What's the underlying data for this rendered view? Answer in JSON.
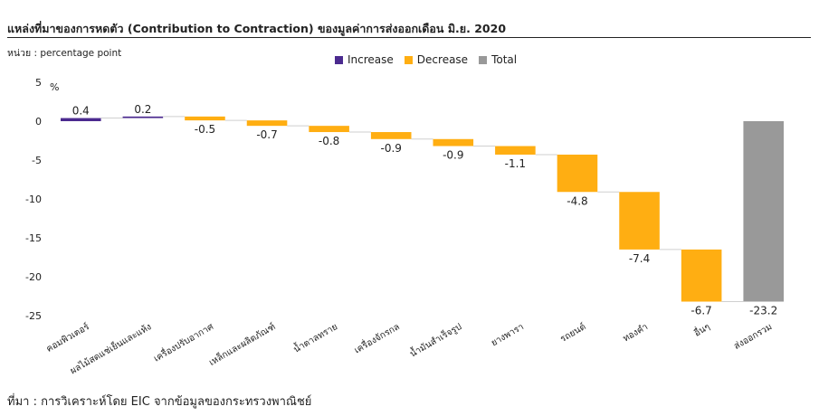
{
  "header": {
    "title": "แหล่งที่มาของการหดตัว (Contribution to Contraction) ของมูลค่าการส่งออกเดือน มิ.ย. 2020",
    "unit": "หน่วย : percentage point"
  },
  "legend": {
    "items": [
      {
        "label": "Increase",
        "color": "#4b2a8f"
      },
      {
        "label": "Decrease",
        "color": "#ffae12"
      },
      {
        "label": "Total",
        "color": "#999999"
      }
    ]
  },
  "chart_data": {
    "type": "waterfall",
    "ylabel": "%",
    "ylim": [
      -25,
      5
    ],
    "yticks": [
      5,
      0,
      -5,
      -10,
      -15,
      -20,
      -25
    ],
    "grid": false,
    "legend_position": "top-center",
    "categories": [
      "คอมพิวเตอร์",
      "ผลไม้สดแช่เย็นและแห้ง",
      "เครื่องปรับอากาศ",
      "เหล็กและผลิตภัณฑ์",
      "น้ำตาลทราย",
      "เครื่องจักรกล",
      "น้ำมันสำเร็จรูป",
      "ยางพารา",
      "รถยนต์",
      "ทองคำ",
      "อื่นๆ",
      "ส่งออกรวม"
    ],
    "values": [
      0.4,
      0.2,
      -0.5,
      -0.7,
      -0.8,
      -0.9,
      -0.9,
      -1.1,
      -4.8,
      -7.4,
      -6.7,
      -23.2
    ],
    "value_labels": [
      "0.4",
      "0.2",
      "-0.5",
      "-0.7",
      "-0.8",
      "-0.9",
      "-0.9",
      "-1.1",
      "-4.8",
      "-7.4",
      "-6.7",
      "-23.2"
    ],
    "kinds": [
      "increase",
      "increase",
      "decrease",
      "decrease",
      "decrease",
      "decrease",
      "decrease",
      "decrease",
      "decrease",
      "decrease",
      "decrease",
      "total"
    ]
  },
  "footer": {
    "source": "ที่มา : การวิเคราะห์โดย EIC จากข้อมูลของกระทรวงพาณิชย์"
  }
}
